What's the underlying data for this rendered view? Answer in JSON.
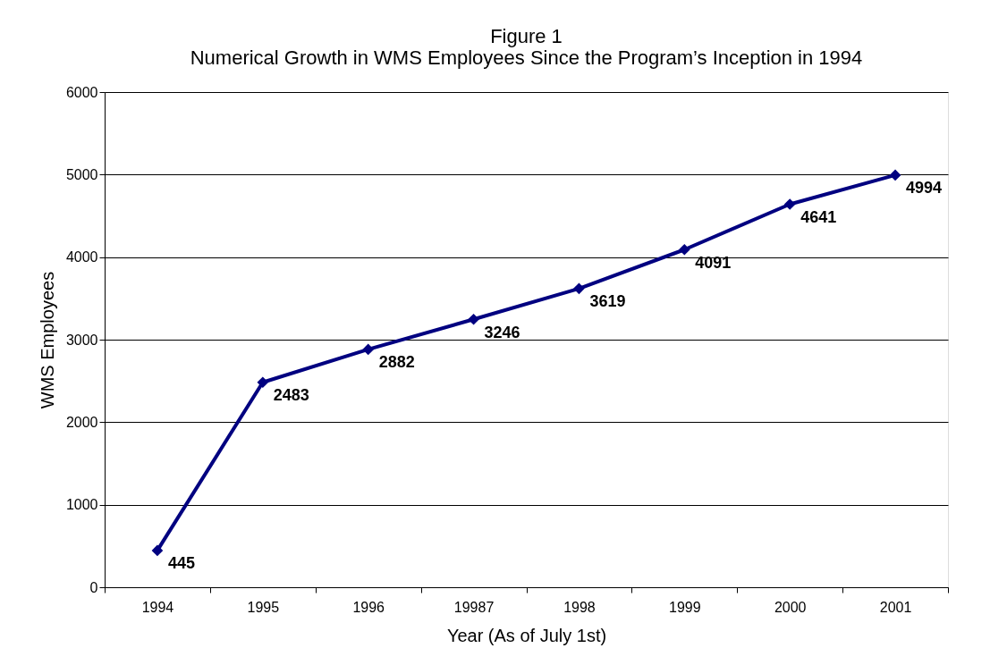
{
  "chart_data": {
    "type": "line",
    "title": "Figure 1",
    "subtitle": "Numerical Growth in WMS Employees Since the Program’s Inception in 1994",
    "xlabel": "Year (As of July 1st)",
    "ylabel": "WMS Employees",
    "categories": [
      "1994",
      "1995",
      "1996",
      "19987",
      "1998",
      "1999",
      "2000",
      "2001"
    ],
    "series": [
      {
        "color": "#000080",
        "values": [
          445,
          2483,
          2882,
          3246,
          3619,
          4091,
          4641,
          4994
        ]
      }
    ],
    "ylim": [
      0,
      6000
    ],
    "yticks": [
      0,
      1000,
      2000,
      3000,
      4000,
      5000,
      6000
    ],
    "grid": "y",
    "marker": "diamond",
    "line_style": "solid",
    "data_labels": true
  }
}
